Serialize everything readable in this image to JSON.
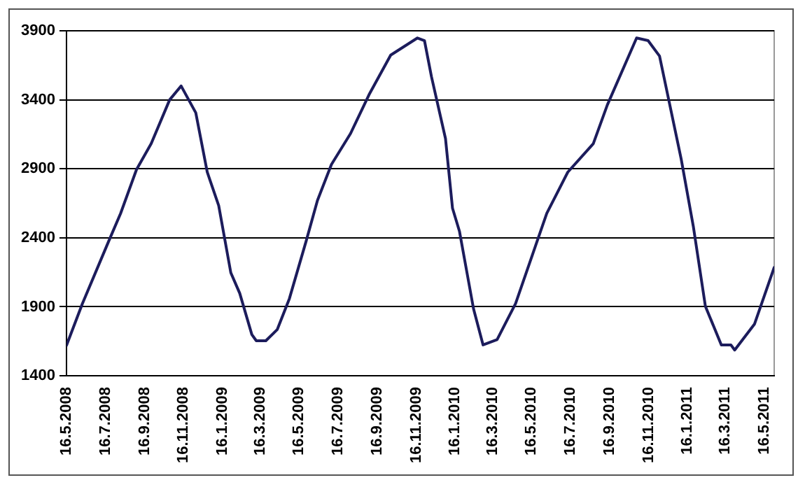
{
  "chart_data": {
    "type": "line",
    "x": [
      "2008-05-16",
      "2008-06-10",
      "2008-07-21",
      "2008-08-09",
      "2008-09-03",
      "2008-09-26",
      "2008-10-25",
      "2008-11-12",
      "2008-12-05",
      "2008-12-23",
      "2009-01-10",
      "2009-01-29",
      "2009-02-12",
      "2009-03-03",
      "2009-03-10",
      "2009-03-25",
      "2009-04-12",
      "2009-05-01",
      "2009-05-27",
      "2009-06-14",
      "2009-07-06",
      "2009-08-05",
      "2009-09-03",
      "2009-10-07",
      "2009-11-18",
      "2009-11-29",
      "2009-12-10",
      "2010-01-01",
      "2010-01-12",
      "2010-01-23",
      "2010-02-14",
      "2010-03-01",
      "2010-03-23",
      "2010-04-21",
      "2010-06-09",
      "2010-07-12",
      "2010-08-21",
      "2010-09-12",
      "2010-10-28",
      "2010-11-15",
      "2010-12-03",
      "2011-01-06",
      "2011-01-25",
      "2011-02-13",
      "2011-03-10",
      "2011-03-25",
      "2011-03-31",
      "2011-05-01",
      "2011-06-01"
    ],
    "series": [
      {
        "color": "#1c1c5c",
        "values": [
          1620,
          1923,
          2372,
          2577,
          2895,
          3082,
          3400,
          3500,
          3306,
          2876,
          2633,
          2147,
          1998,
          1699,
          1654,
          1654,
          1736,
          1960,
          2372,
          2671,
          2932,
          3156,
          3437,
          3724,
          3848,
          3829,
          3567,
          3119,
          2615,
          2446,
          1886,
          1624,
          1662,
          1923,
          2577,
          2876,
          3082,
          3362,
          3848,
          3829,
          3717,
          2970,
          2484,
          1904,
          1624,
          1624,
          1587,
          1774,
          2185
        ]
      }
    ],
    "xlim": [
      "2008-05-16",
      "2011-06-01"
    ],
    "xticks": [
      {
        "value": "2008-05-16",
        "label": "16.5.2008"
      },
      {
        "value": "2008-07-16",
        "label": "16.7.2008"
      },
      {
        "value": "2008-09-16",
        "label": "16.9.2008"
      },
      {
        "value": "2008-11-16",
        "label": "16.11.2008"
      },
      {
        "value": "2009-01-16",
        "label": "16.1.2009"
      },
      {
        "value": "2009-03-16",
        "label": "16.3.2009"
      },
      {
        "value": "2009-05-16",
        "label": "16.5.2009"
      },
      {
        "value": "2009-07-16",
        "label": "16.7.2009"
      },
      {
        "value": "2009-09-16",
        "label": "16.9.2009"
      },
      {
        "value": "2009-11-16",
        "label": "16.11.2009"
      },
      {
        "value": "2010-01-16",
        "label": "16.1.2010"
      },
      {
        "value": "2010-03-16",
        "label": "16.3.2010"
      },
      {
        "value": "2010-05-16",
        "label": "16.5.2010"
      },
      {
        "value": "2010-07-16",
        "label": "16.7.2010"
      },
      {
        "value": "2010-09-16",
        "label": "16.9.2010"
      },
      {
        "value": "2010-11-16",
        "label": "16.11.2010"
      },
      {
        "value": "2011-01-16",
        "label": "16.1.2011"
      },
      {
        "value": "2011-03-16",
        "label": "16.3.2011"
      },
      {
        "value": "2011-05-16",
        "label": "16.5.2011"
      }
    ],
    "ylim": [
      1400,
      3900
    ],
    "yticks": [
      1400,
      1900,
      2400,
      2900,
      3400,
      3900
    ],
    "grid": "y",
    "legend": false,
    "marker": "none",
    "line_style": "solid"
  }
}
